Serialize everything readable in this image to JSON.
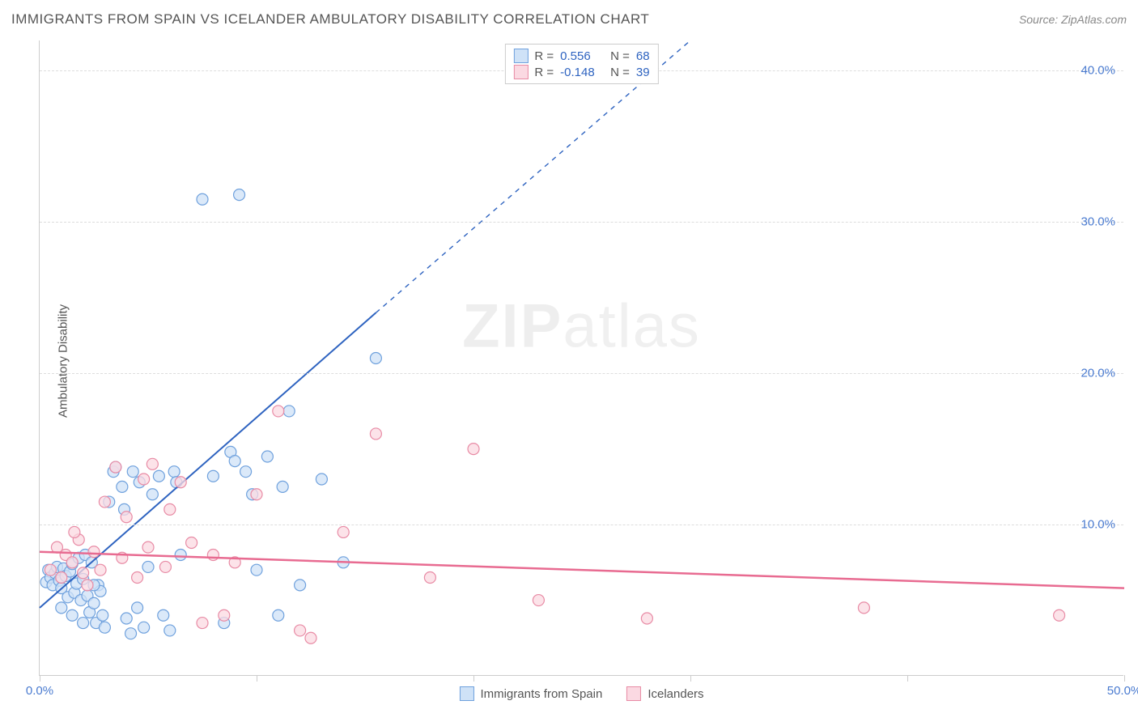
{
  "header": {
    "title": "IMMIGRANTS FROM SPAIN VS ICELANDER AMBULATORY DISABILITY CORRELATION CHART",
    "source": "Source: ZipAtlas.com"
  },
  "watermark": {
    "zip": "ZIP",
    "atlas": "atlas"
  },
  "chart": {
    "type": "scatter",
    "ylabel": "Ambulatory Disability",
    "xlim": [
      0,
      50
    ],
    "ylim": [
      0,
      42
    ],
    "yticks": [
      {
        "v": 10,
        "label": "10.0%"
      },
      {
        "v": 20,
        "label": "20.0%"
      },
      {
        "v": 30,
        "label": "30.0%"
      },
      {
        "v": 40,
        "label": "40.0%"
      }
    ],
    "xticks": [
      {
        "v": 0,
        "label": "0.0%"
      },
      {
        "v": 10,
        "label": null
      },
      {
        "v": 20,
        "label": null
      },
      {
        "v": 30,
        "label": null
      },
      {
        "v": 40,
        "label": null
      },
      {
        "v": 50,
        "label": "50.0%"
      }
    ],
    "ytick_color": "#4a7bd0",
    "xtick_color": "#4a7bd0",
    "grid_color": "#dddddd",
    "background_color": "#ffffff",
    "marker_radius": 7,
    "marker_stroke_width": 1.2,
    "series": [
      {
        "name": "Immigrants from Spain",
        "fill": "#cfe2f7",
        "stroke": "#6fa1dd",
        "R": 0.556,
        "N": 68,
        "fit_line": {
          "x1": 0,
          "y1": 4.5,
          "x2": 15.5,
          "y2": 24.0,
          "dash_extend_x2": 30,
          "dash_extend_y2": 42,
          "color": "#2e63c0",
          "width": 2
        },
        "points": [
          [
            0.3,
            6.2
          ],
          [
            0.4,
            7.0
          ],
          [
            0.5,
            6.5
          ],
          [
            0.6,
            6.0
          ],
          [
            0.7,
            6.8
          ],
          [
            0.8,
            7.2
          ],
          [
            0.9,
            6.3
          ],
          [
            1.0,
            5.8
          ],
          [
            1.1,
            7.1
          ],
          [
            1.2,
            6.6
          ],
          [
            1.3,
            5.2
          ],
          [
            1.4,
            6.9
          ],
          [
            1.5,
            7.4
          ],
          [
            1.6,
            5.5
          ],
          [
            1.7,
            6.1
          ],
          [
            1.8,
            7.8
          ],
          [
            1.9,
            5.0
          ],
          [
            2.0,
            6.4
          ],
          [
            2.1,
            8.0
          ],
          [
            2.2,
            5.3
          ],
          [
            2.3,
            4.2
          ],
          [
            2.4,
            7.5
          ],
          [
            2.5,
            4.8
          ],
          [
            2.6,
            3.5
          ],
          [
            2.7,
            6.0
          ],
          [
            2.8,
            5.6
          ],
          [
            2.9,
            4.0
          ],
          [
            3.0,
            3.2
          ],
          [
            3.2,
            11.5
          ],
          [
            3.4,
            13.5
          ],
          [
            3.5,
            13.8
          ],
          [
            3.8,
            12.5
          ],
          [
            3.9,
            11.0
          ],
          [
            4.0,
            3.8
          ],
          [
            4.2,
            2.8
          ],
          [
            4.3,
            13.5
          ],
          [
            4.5,
            4.5
          ],
          [
            4.6,
            12.8
          ],
          [
            4.8,
            3.2
          ],
          [
            5.0,
            7.2
          ],
          [
            5.2,
            12.0
          ],
          [
            5.5,
            13.2
          ],
          [
            5.7,
            4.0
          ],
          [
            6.0,
            3.0
          ],
          [
            6.2,
            13.5
          ],
          [
            6.3,
            12.8
          ],
          [
            6.5,
            8.0
          ],
          [
            7.5,
            31.5
          ],
          [
            8.0,
            13.2
          ],
          [
            8.5,
            3.5
          ],
          [
            8.8,
            14.8
          ],
          [
            9.0,
            14.2
          ],
          [
            9.2,
            31.8
          ],
          [
            9.5,
            13.5
          ],
          [
            9.8,
            12.0
          ],
          [
            10.0,
            7.0
          ],
          [
            10.5,
            14.5
          ],
          [
            11.0,
            4.0
          ],
          [
            11.2,
            12.5
          ],
          [
            11.5,
            17.5
          ],
          [
            12.0,
            6.0
          ],
          [
            13.0,
            13.0
          ],
          [
            14.0,
            7.5
          ],
          [
            15.5,
            21.0
          ],
          [
            1.0,
            4.5
          ],
          [
            1.5,
            4.0
          ],
          [
            2.0,
            3.5
          ],
          [
            2.5,
            6.0
          ]
        ]
      },
      {
        "name": "Icelanders",
        "fill": "#fbd9e2",
        "stroke": "#e88ba5",
        "R": -0.148,
        "N": 39,
        "fit_line": {
          "x1": 0,
          "y1": 8.2,
          "x2": 50,
          "y2": 5.8,
          "color": "#e86b91",
          "width": 2.5
        },
        "points": [
          [
            0.5,
            7.0
          ],
          [
            0.8,
            8.5
          ],
          [
            1.0,
            6.5
          ],
          [
            1.2,
            8.0
          ],
          [
            1.5,
            7.5
          ],
          [
            1.8,
            9.0
          ],
          [
            2.0,
            6.8
          ],
          [
            2.5,
            8.2
          ],
          [
            2.8,
            7.0
          ],
          [
            3.0,
            11.5
          ],
          [
            3.5,
            13.8
          ],
          [
            3.8,
            7.8
          ],
          [
            4.0,
            10.5
          ],
          [
            4.5,
            6.5
          ],
          [
            5.0,
            8.5
          ],
          [
            5.2,
            14.0
          ],
          [
            5.8,
            7.2
          ],
          [
            6.5,
            12.8
          ],
          [
            7.0,
            8.8
          ],
          [
            7.5,
            3.5
          ],
          [
            8.0,
            8.0
          ],
          [
            8.5,
            4.0
          ],
          [
            9.0,
            7.5
          ],
          [
            10.0,
            12.0
          ],
          [
            11.0,
            17.5
          ],
          [
            12.0,
            3.0
          ],
          [
            12.5,
            2.5
          ],
          [
            14.0,
            9.5
          ],
          [
            15.5,
            16.0
          ],
          [
            18.0,
            6.5
          ],
          [
            20.0,
            15.0
          ],
          [
            23.0,
            5.0
          ],
          [
            28.0,
            3.8
          ],
          [
            38.0,
            4.5
          ],
          [
            47.0,
            4.0
          ],
          [
            4.8,
            13.0
          ],
          [
            6.0,
            11.0
          ],
          [
            2.2,
            6.0
          ],
          [
            1.6,
            9.5
          ]
        ]
      }
    ],
    "legend_top": {
      "R_label": "R =",
      "N_label": "N =",
      "label_color": "#555555",
      "value_color": "#2e63c0"
    },
    "legend_bottom_text_color": "#555555"
  }
}
